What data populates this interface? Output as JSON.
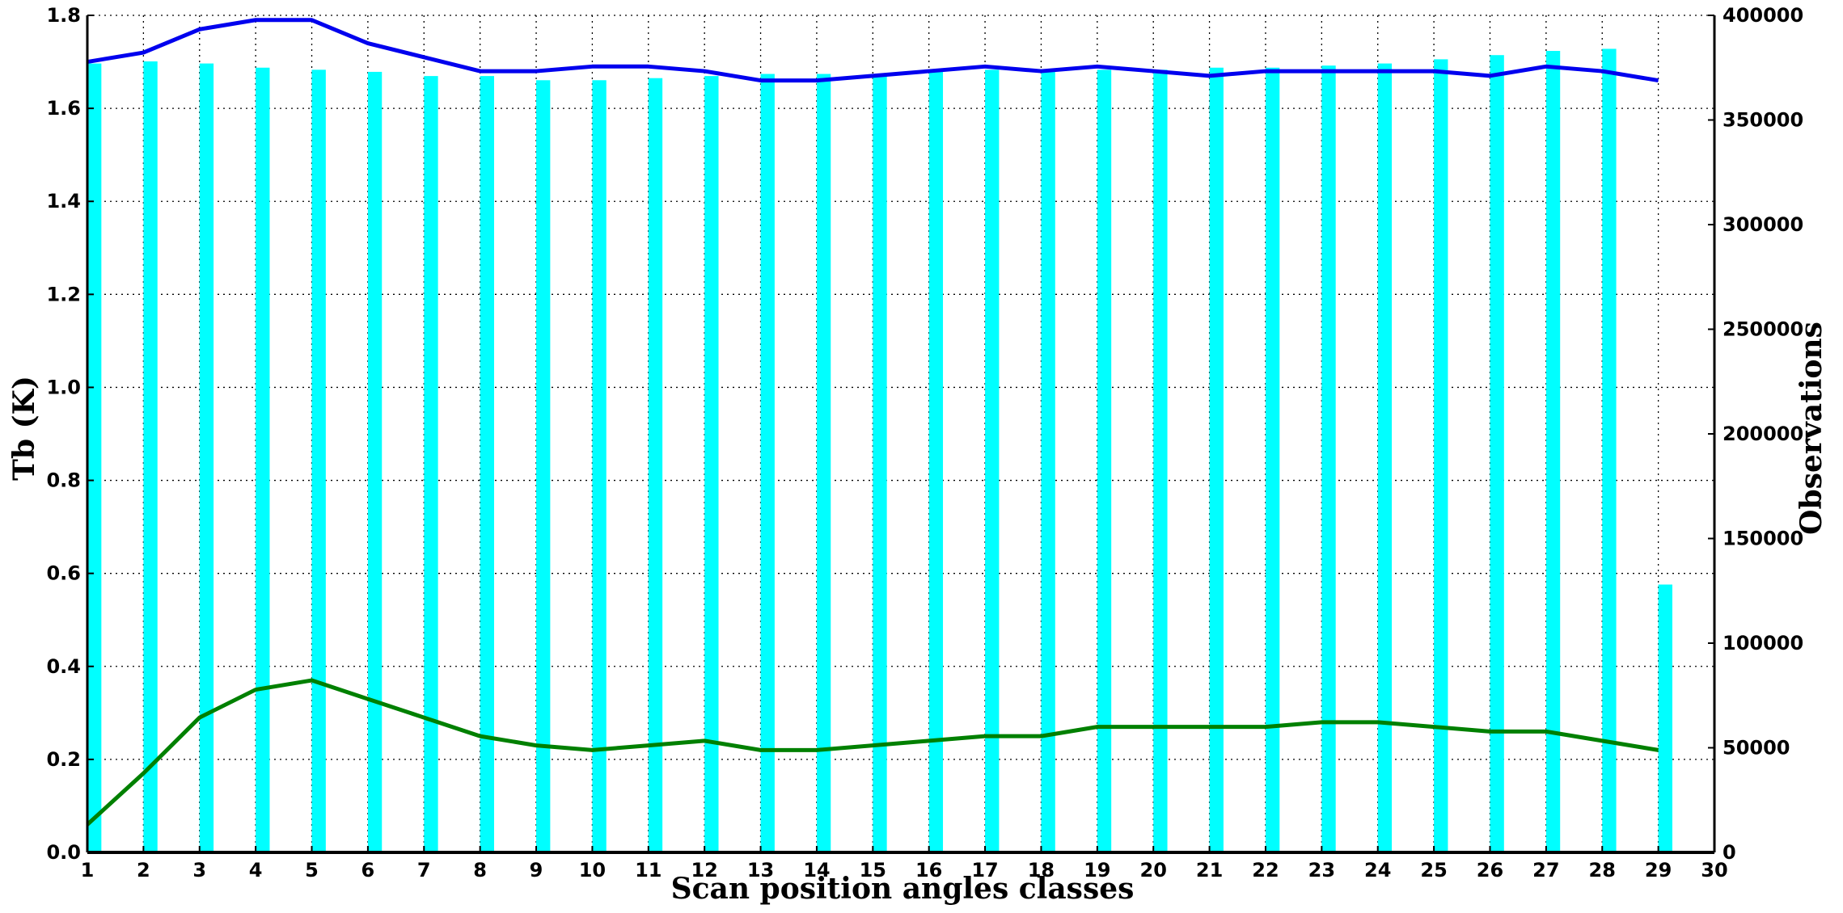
{
  "chart_data": {
    "type": "bar",
    "title": "",
    "xlabel": "Scan position angles classes",
    "ylabel": "Tb (K)",
    "y2label": "Observations",
    "xlim": [
      1,
      30
    ],
    "ylim": [
      0.0,
      1.8
    ],
    "y2lim": [
      0,
      400000
    ],
    "x_ticks": [
      "1",
      "2",
      "3",
      "4",
      "5",
      "6",
      "7",
      "8",
      "9",
      "10",
      "11",
      "12",
      "13",
      "14",
      "15",
      "16",
      "17",
      "18",
      "19",
      "20",
      "21",
      "22",
      "23",
      "24",
      "25",
      "26",
      "27",
      "28",
      "29",
      "30"
    ],
    "y_ticks": [
      "0.0",
      "0.2",
      "0.4",
      "0.6",
      "0.8",
      "1.0",
      "1.2",
      "1.4",
      "1.6",
      "1.8"
    ],
    "y2_ticks": [
      "0",
      "50000",
      "100000",
      "150000",
      "200000",
      "250000",
      "300000",
      "350000",
      "400000"
    ],
    "grid": true,
    "x": [
      1,
      2,
      3,
      4,
      5,
      6,
      7,
      8,
      9,
      10,
      11,
      12,
      13,
      14,
      15,
      16,
      17,
      18,
      19,
      20,
      21,
      22,
      23,
      24,
      25,
      26,
      27,
      28,
      29
    ],
    "series": [
      {
        "kind": "bar",
        "axis": "right",
        "color": "#00ffff",
        "values": [
          377000,
          378000,
          377000,
          375000,
          374000,
          373000,
          371000,
          371000,
          369000,
          369000,
          370000,
          371000,
          372000,
          372000,
          372000,
          373000,
          374000,
          374000,
          374000,
          374000,
          375000,
          375000,
          376000,
          377000,
          379000,
          381000,
          383000,
          384000,
          128000
        ]
      },
      {
        "kind": "line",
        "axis": "left",
        "color": "#0000ee",
        "values": [
          1.7,
          1.72,
          1.77,
          1.79,
          1.79,
          1.74,
          1.71,
          1.68,
          1.68,
          1.69,
          1.69,
          1.68,
          1.66,
          1.66,
          1.67,
          1.68,
          1.69,
          1.68,
          1.69,
          1.68,
          1.67,
          1.68,
          1.68,
          1.68,
          1.68,
          1.67,
          1.69,
          1.68,
          1.66
        ]
      },
      {
        "kind": "line",
        "axis": "left",
        "color": "#008000",
        "values": [
          0.06,
          0.17,
          0.29,
          0.35,
          0.37,
          0.33,
          0.29,
          0.25,
          0.23,
          0.22,
          0.23,
          0.24,
          0.22,
          0.22,
          0.23,
          0.24,
          0.25,
          0.25,
          0.27,
          0.27,
          0.27,
          0.27,
          0.28,
          0.28,
          0.27,
          0.26,
          0.26,
          0.24,
          0.22
        ]
      }
    ]
  }
}
